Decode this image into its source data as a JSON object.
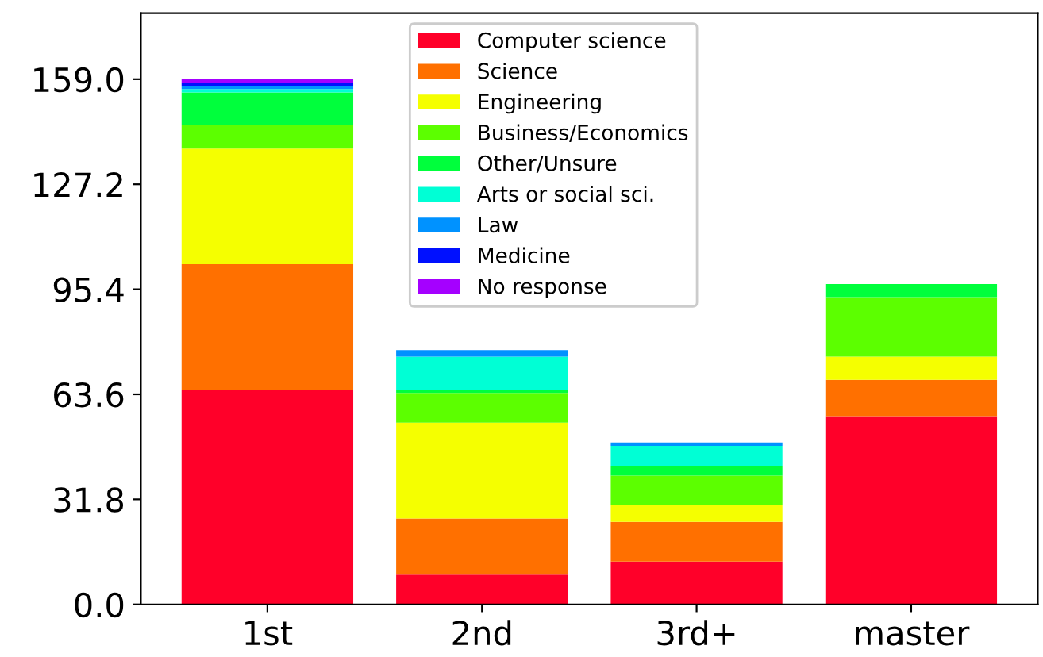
{
  "chart_data": {
    "type": "bar",
    "stacked": true,
    "categories": [
      "1st",
      "2nd",
      "3rd+",
      "master"
    ],
    "series": [
      {
        "name": "Computer science",
        "color": "#ff0029",
        "values": [
          65,
          9,
          13,
          57
        ]
      },
      {
        "name": "Science",
        "color": "#ff7000",
        "values": [
          38,
          17,
          12,
          11
        ]
      },
      {
        "name": "Engineering",
        "color": "#f5ff00",
        "values": [
          35,
          29,
          5,
          7
        ]
      },
      {
        "name": "Business/Economics",
        "color": "#5cff00",
        "values": [
          7,
          9,
          9,
          18
        ]
      },
      {
        "name": "Other/Unsure",
        "color": "#00ff3c",
        "values": [
          10,
          1,
          3,
          4
        ]
      },
      {
        "name": "Arts or social sci.",
        "color": "#00ffd5",
        "values": [
          1,
          10,
          6,
          0
        ]
      },
      {
        "name": "Law",
        "color": "#0092ff",
        "values": [
          1,
          2,
          1,
          0
        ]
      },
      {
        "name": "Medicine",
        "color": "#0010ff",
        "values": [
          1,
          0,
          0,
          0
        ]
      },
      {
        "name": "No response",
        "color": "#a500ff",
        "values": [
          1,
          0,
          0,
          0
        ]
      }
    ],
    "ylim": [
      0,
      179
    ],
    "yticks": [
      {
        "value": 0,
        "label": "0.0"
      },
      {
        "value": 31.8,
        "label": "31.8"
      },
      {
        "value": 63.6,
        "label": "63.6"
      },
      {
        "value": 95.4,
        "label": "95.4"
      },
      {
        "value": 127.2,
        "label": "127.2"
      },
      {
        "value": 159,
        "label": "159.0"
      }
    ],
    "legend": "top",
    "grid": false
  }
}
